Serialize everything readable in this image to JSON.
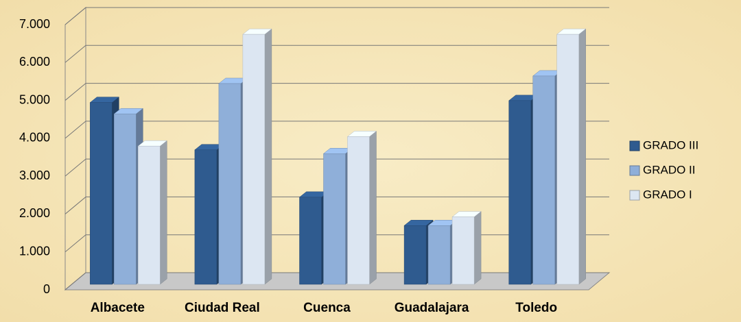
{
  "chart_data": {
    "type": "bar3d",
    "categories": [
      "Albacete",
      "Ciudad Real",
      "Cuenca",
      "Guadalajara",
      "Toledo"
    ],
    "series": [
      {
        "name": "GRADO III",
        "color": "#2f5b8f",
        "values": [
          4800,
          3550,
          2300,
          1550,
          4850
        ]
      },
      {
        "name": "GRADO II",
        "color": "#8fafd9",
        "values": [
          4500,
          5300,
          3450,
          1550,
          5500
        ]
      },
      {
        "name": "GRADO I",
        "color": "#dce6f2",
        "values": [
          3650,
          6600,
          3900,
          1780,
          6600
        ]
      }
    ],
    "ylim": [
      0,
      7000
    ],
    "yticks": [
      0,
      {
        "value": 1000,
        "label": "1.000"
      },
      {
        "value": 2000,
        "label": "2.000"
      },
      {
        "value": 3000,
        "label": "3.000"
      },
      {
        "value": 4000,
        "label": "4.000"
      },
      {
        "value": 5000,
        "label": "5.000"
      },
      {
        "value": 6000,
        "label": "6.000"
      },
      {
        "value": 7000,
        "label": "7.000"
      }
    ],
    "grid": true,
    "legend": "right"
  }
}
